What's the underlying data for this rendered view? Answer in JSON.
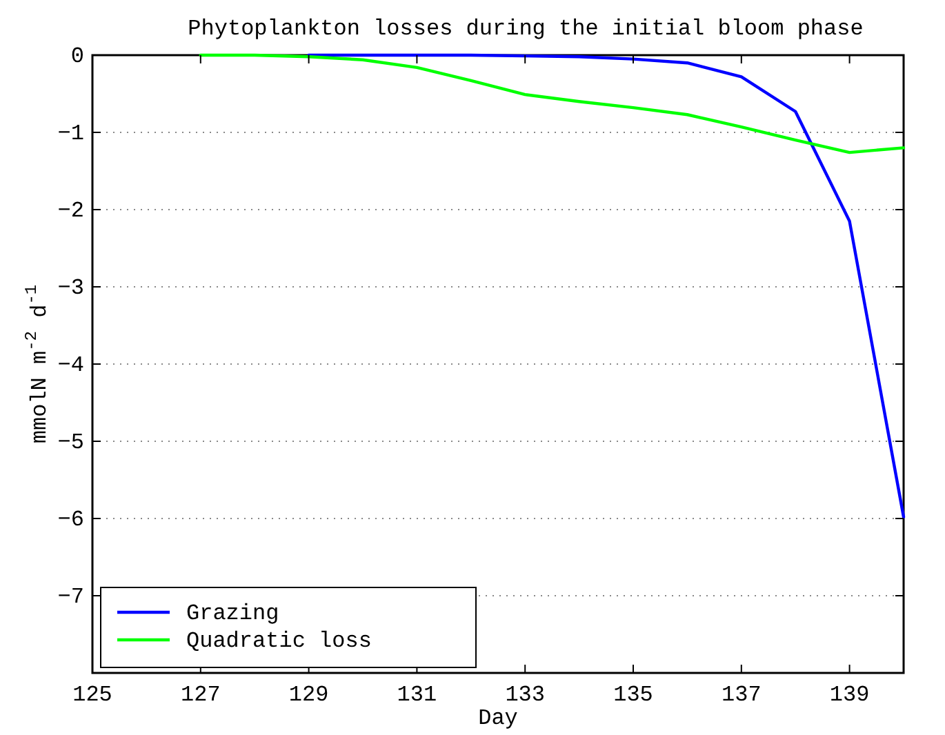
{
  "chart_data": {
    "type": "line",
    "title": "Phytoplankton losses during the initial bloom phase",
    "xlabel": "Day",
    "ylabel": "mmolN m$^{-2}$ d$^{-1}$",
    "x": [
      127,
      128,
      129,
      130,
      131,
      132,
      133,
      134,
      135,
      136,
      137,
      138,
      139,
      140
    ],
    "series": [
      {
        "name": "Grazing",
        "color": "#0000ff",
        "values": [
          null,
          null,
          0,
          0,
          0,
          0,
          -0.01,
          -0.02,
          -0.05,
          -0.1,
          -0.28,
          -0.73,
          -2.15,
          -5.98
        ]
      },
      {
        "name": "Quadratic loss",
        "color": "#00ff00",
        "values": [
          0,
          0,
          -0.02,
          -0.06,
          -0.16,
          -0.33,
          -0.51,
          -0.6,
          -0.68,
          -0.77,
          -0.93,
          -1.1,
          -1.26,
          -1.2
        ]
      }
    ],
    "xlim": [
      125,
      140
    ],
    "xticks": [
      125,
      127,
      129,
      131,
      133,
      135,
      137,
      139
    ],
    "ylim": [
      -8,
      0
    ],
    "yticks": [
      {
        "value": -7,
        "label": "−7"
      },
      {
        "value": -6,
        "label": "−6"
      },
      {
        "value": -5,
        "label": "−5"
      },
      {
        "value": -4,
        "label": "−4"
      },
      {
        "value": -3,
        "label": "−3"
      },
      {
        "value": -2,
        "label": "−2"
      },
      {
        "value": -1,
        "label": "−1"
      },
      0
    ],
    "grid": "y",
    "legend": "bottom left",
    "line_style": "solid"
  }
}
